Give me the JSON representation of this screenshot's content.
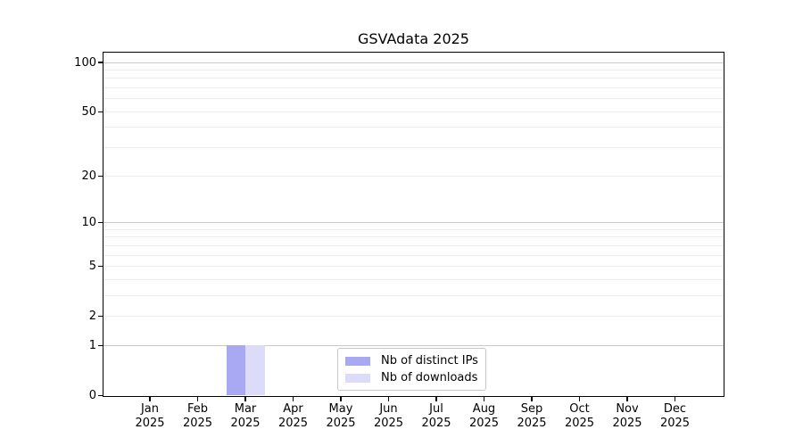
{
  "chart_data": {
    "type": "bar",
    "title": "GSVAdata 2025",
    "categories": [
      "Jan",
      "Feb",
      "Mar",
      "Apr",
      "May",
      "Jun",
      "Jul",
      "Aug",
      "Sep",
      "Oct",
      "Nov",
      "Dec"
    ],
    "x_tick_second_line": "2025",
    "series": [
      {
        "name": "Nb of distinct IPs",
        "color": "#a8a8f3",
        "values": [
          0,
          0,
          1,
          0,
          0,
          0,
          0,
          0,
          0,
          0,
          0,
          0
        ]
      },
      {
        "name": "Nb of downloads",
        "color": "#dcdcf8",
        "values": [
          0,
          0,
          1,
          0,
          0,
          0,
          0,
          0,
          0,
          0,
          0,
          0
        ]
      }
    ],
    "y_axis": {
      "scale": "log10(1+y)",
      "ylim": [
        0,
        114
      ],
      "tick_labels": [
        "100",
        "50",
        "20",
        "10",
        "5",
        "2",
        "1",
        "0"
      ],
      "tick_values": [
        100,
        50,
        20,
        10,
        5,
        2,
        1,
        0
      ],
      "minor_gridline_values": [
        90,
        80,
        70,
        60,
        40,
        30,
        9,
        8,
        7,
        6,
        4,
        3
      ],
      "decade_gridline_values": [
        100,
        10,
        1
      ],
      "grid": true
    },
    "legend": {
      "position": "lower center"
    }
  }
}
